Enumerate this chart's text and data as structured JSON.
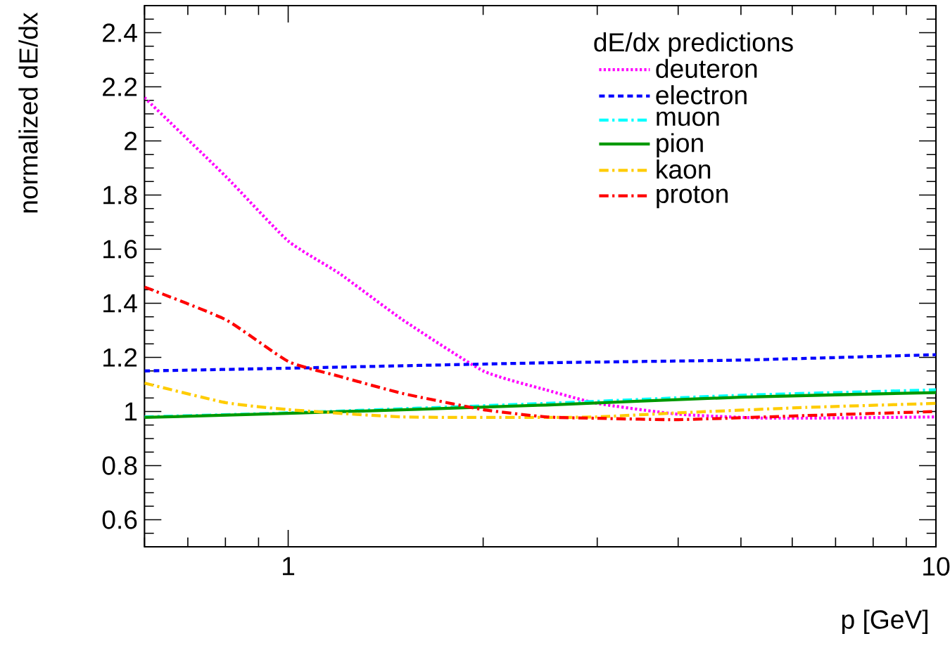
{
  "chart_data": {
    "type": "line",
    "xlabel": "p [GeV]",
    "ylabel": "normalized dE/dx",
    "legend_title": "dE/dx predictions",
    "log": "x",
    "grid": false,
    "legend": "top right",
    "marker": "none",
    "xlim": [
      0.6,
      10
    ],
    "ylim": [
      0.5,
      2.5
    ],
    "xticks": [
      {
        "value": 0.6,
        "label": null
      },
      {
        "value": 0.7,
        "label": null
      },
      {
        "value": 0.8,
        "label": null
      },
      {
        "value": 0.9,
        "label": null
      },
      1,
      {
        "value": 2,
        "label": null
      },
      {
        "value": 3,
        "label": null
      },
      {
        "value": 4,
        "label": null
      },
      {
        "value": 5,
        "label": null
      },
      {
        "value": 6,
        "label": null
      },
      {
        "value": 7,
        "label": null
      },
      {
        "value": 8,
        "label": null
      },
      {
        "value": 9,
        "label": null
      },
      10
    ],
    "yticks": [
      {
        "value": 0.55,
        "label": null
      },
      0.6,
      {
        "value": 0.65,
        "label": null
      },
      {
        "value": 0.7,
        "label": null
      },
      {
        "value": 0.75,
        "label": null
      },
      0.8,
      {
        "value": 0.85,
        "label": null
      },
      {
        "value": 0.9,
        "label": null
      },
      {
        "value": 0.95,
        "label": null
      },
      1,
      {
        "value": 1.05,
        "label": null
      },
      {
        "value": 1.1,
        "label": null
      },
      {
        "value": 1.15,
        "label": null
      },
      1.2,
      {
        "value": 1.25,
        "label": null
      },
      {
        "value": 1.3,
        "label": null
      },
      {
        "value": 1.35,
        "label": null
      },
      1.4,
      {
        "value": 1.45,
        "label": null
      },
      {
        "value": 1.5,
        "label": null
      },
      {
        "value": 1.55,
        "label": null
      },
      1.6,
      {
        "value": 1.65,
        "label": null
      },
      {
        "value": 1.7,
        "label": null
      },
      {
        "value": 1.75,
        "label": null
      },
      1.8,
      {
        "value": 1.85,
        "label": null
      },
      {
        "value": 1.9,
        "label": null
      },
      {
        "value": 1.95,
        "label": null
      },
      2,
      {
        "value": 2.05,
        "label": null
      },
      {
        "value": 2.1,
        "label": null
      },
      {
        "value": 2.15,
        "label": null
      },
      2.2,
      {
        "value": 2.25,
        "label": null
      },
      {
        "value": 2.3,
        "label": null
      },
      {
        "value": 2.35,
        "label": null
      },
      2.4,
      {
        "value": 2.45,
        "label": null
      }
    ],
    "series": [
      {
        "name": "deuteron",
        "color": "#ff00ff",
        "line_style": "dotted",
        "x": [
          0.6,
          0.8,
          1,
          1.2,
          1.5,
          2,
          2.5,
          3,
          4,
          5.6,
          10
        ],
        "values": [
          2.16,
          1.87,
          1.63,
          1.51,
          1.34,
          1.15,
          1.08,
          1.03,
          0.99,
          0.975,
          0.98
        ]
      },
      {
        "name": "electron",
        "color": "#0000ff",
        "line_style": "dashed",
        "x": [
          0.6,
          1,
          2.5,
          5,
          10
        ],
        "values": [
          1.15,
          1.16,
          1.18,
          1.19,
          1.21
        ]
      },
      {
        "name": "muon",
        "color": "#00ffff",
        "line_style": "dashdot",
        "x": [
          0.6,
          1,
          2.5,
          5,
          10
        ],
        "values": [
          0.98,
          0.995,
          1.03,
          1.06,
          1.08
        ]
      },
      {
        "name": "pion",
        "color": "#009900",
        "line_style": "solid",
        "x": [
          0.6,
          1,
          2.5,
          5,
          10
        ],
        "values": [
          0.978,
          0.993,
          1.024,
          1.053,
          1.07
        ]
      },
      {
        "name": "kaon",
        "color": "#ffcc00",
        "line_style": "dashdot",
        "x": [
          0.6,
          0.8,
          1,
          1.5,
          2.5,
          3,
          4,
          6.3,
          10
        ],
        "values": [
          1.105,
          1.033,
          1.007,
          0.98,
          0.978,
          0.98,
          0.995,
          1.015,
          1.03
        ]
      },
      {
        "name": "proton",
        "color": "#ff0000",
        "line_style": "dashdot",
        "x": [
          0.6,
          0.8,
          1,
          1.2,
          1.5,
          2,
          2.5,
          3,
          4,
          6.3,
          10
        ],
        "values": [
          1.46,
          1.34,
          1.185,
          1.13,
          1.067,
          1.007,
          0.98,
          0.975,
          0.97,
          0.985,
          1.0
        ]
      }
    ]
  }
}
